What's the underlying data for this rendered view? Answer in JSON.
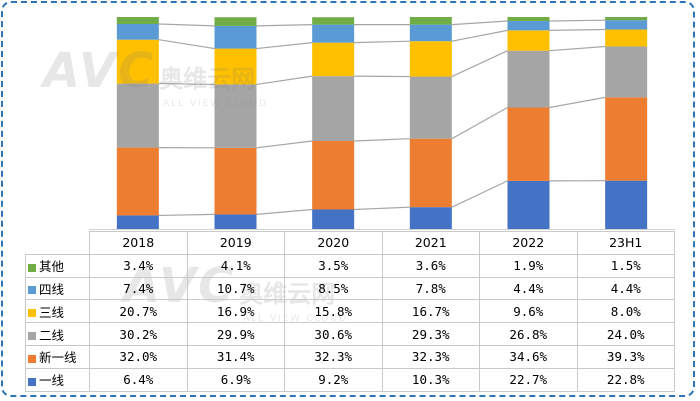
{
  "chart_data": {
    "type": "bar",
    "stacked": true,
    "normalized": true,
    "categories": [
      "2018",
      "2019",
      "2020",
      "2021",
      "2022",
      "23H1"
    ],
    "series": [
      {
        "name": "一线",
        "color": "#4472c4",
        "values": [
          "6.4%",
          "6.9%",
          "9.2%",
          "10.3%",
          "22.7%",
          "22.8%"
        ],
        "numeric": [
          6.4,
          6.9,
          9.2,
          10.3,
          22.7,
          22.8
        ]
      },
      {
        "name": "新一线",
        "color": "#ed7d31",
        "values": [
          "32.0%",
          "31.4%",
          "32.3%",
          "32.3%",
          "34.6%",
          "39.3%"
        ],
        "numeric": [
          32.0,
          31.4,
          32.3,
          32.3,
          34.6,
          39.3
        ]
      },
      {
        "name": "二线",
        "color": "#a5a5a5",
        "values": [
          "30.2%",
          "29.9%",
          "30.6%",
          "29.3%",
          "26.8%",
          "24.0%"
        ],
        "numeric": [
          30.2,
          29.9,
          30.6,
          29.3,
          26.8,
          24.0
        ]
      },
      {
        "name": "三线",
        "color": "#ffc000",
        "values": [
          "20.7%",
          "16.9%",
          "15.8%",
          "16.7%",
          "9.6%",
          "8.0%"
        ],
        "numeric": [
          20.7,
          16.9,
          15.8,
          16.7,
          9.6,
          8.0
        ]
      },
      {
        "name": "四线",
        "color": "#5b9bd5",
        "values": [
          "7.4%",
          "10.7%",
          "8.5%",
          "7.8%",
          "4.4%",
          "4.4%"
        ],
        "numeric": [
          7.4,
          10.7,
          8.5,
          7.8,
          4.4,
          4.4
        ]
      },
      {
        "name": "其他",
        "color": "#70ad47",
        "values": [
          "3.4%",
          "4.1%",
          "3.5%",
          "3.6%",
          "1.9%",
          "1.5%"
        ],
        "numeric": [
          3.4,
          4.1,
          3.5,
          3.6,
          1.9,
          1.5
        ]
      }
    ],
    "table_row_order": [
      "其他",
      "四线",
      "三线",
      "二线",
      "新一线",
      "一线"
    ],
    "series_lines": true,
    "ylim": [
      0,
      100
    ],
    "grid": false,
    "legend": "data-table"
  },
  "watermark": {
    "logo": "AVC",
    "name_cn": "奥维云网",
    "name_en": "ALL VIEW CLOUD"
  }
}
